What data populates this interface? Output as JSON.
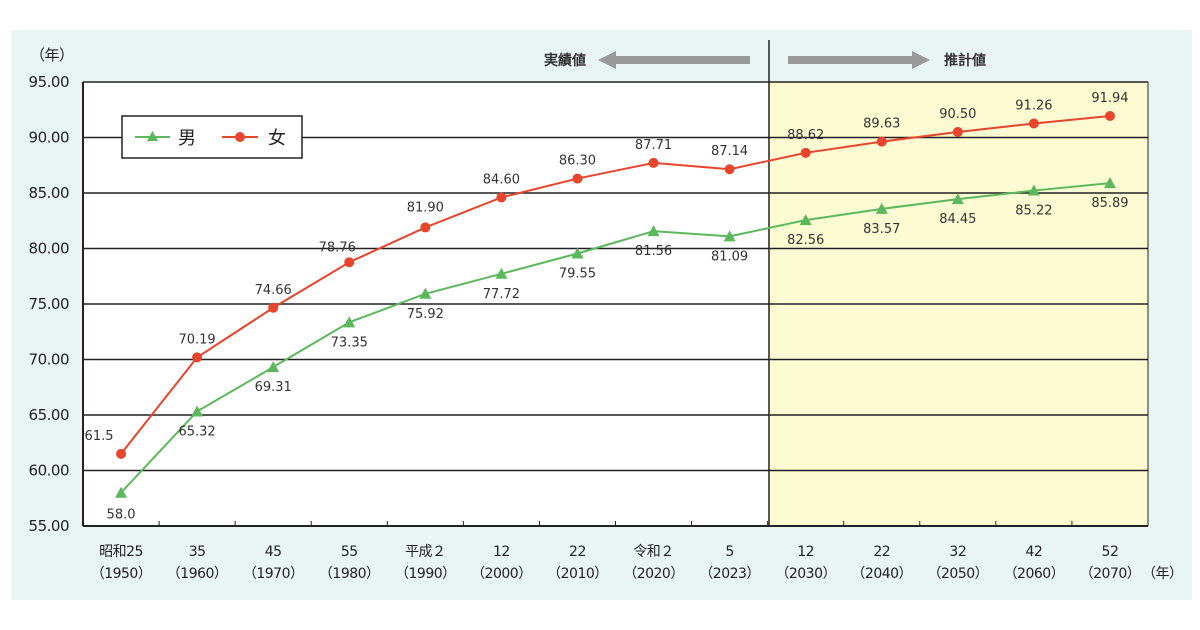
{
  "chart_data": {
    "type": "line",
    "ylabel": "（年）",
    "xunit": "（年）",
    "ylim": [
      55,
      95
    ],
    "yticks": [
      "55.00",
      "60.00",
      "65.00",
      "70.00",
      "75.00",
      "80.00",
      "85.00",
      "90.00",
      "95.00"
    ],
    "grid": true,
    "legend_placement": "top-left",
    "categories": [
      {
        "era": "昭和25",
        "year": "（1950）"
      },
      {
        "era": "35",
        "year": "（1960）"
      },
      {
        "era": "45",
        "year": "（1970）"
      },
      {
        "era": "55",
        "year": "（1980）"
      },
      {
        "era": "平成２",
        "year": "（1990）"
      },
      {
        "era": "12",
        "year": "（2000）"
      },
      {
        "era": "22",
        "year": "（2010）"
      },
      {
        "era": "令和２",
        "year": "（2020）"
      },
      {
        "era": "5",
        "year": "（2023）"
      },
      {
        "era": "12",
        "year": "（2030）"
      },
      {
        "era": "22",
        "year": "（2040）"
      },
      {
        "era": "32",
        "year": "（2050）"
      },
      {
        "era": "42",
        "year": "（2060）"
      },
      {
        "era": "52",
        "year": "（2070）"
      }
    ],
    "series": [
      {
        "name": "男",
        "color": "#5cb85c",
        "marker": "triangle",
        "values": [
          58.0,
          65.32,
          69.31,
          73.35,
          75.92,
          77.72,
          79.55,
          81.56,
          81.09,
          82.56,
          83.57,
          84.45,
          85.22,
          85.89
        ],
        "labels": [
          "58.0",
          "65.32",
          "69.31",
          "73.35",
          "75.92",
          "77.72",
          "79.55",
          "81.56",
          "81.09",
          "82.56",
          "83.57",
          "84.45",
          "85.22",
          "85.89"
        ]
      },
      {
        "name": "女",
        "color": "#e8452c",
        "marker": "circle",
        "values": [
          61.5,
          70.19,
          74.66,
          78.76,
          81.9,
          84.6,
          86.3,
          87.71,
          87.14,
          88.62,
          89.63,
          90.5,
          91.26,
          91.94
        ],
        "labels": [
          "61.5",
          "70.19",
          "74.66",
          "78.76",
          "81.90",
          "84.60",
          "86.30",
          "87.71",
          "87.14",
          "88.62",
          "89.63",
          "90.50",
          "91.26",
          "91.94"
        ]
      }
    ],
    "annotations": {
      "actual": "実績値",
      "projected": "推計値",
      "projected_from_index": 9,
      "projected_fill": "#fdfbd2"
    }
  },
  "colors": {
    "background": "#e9f5f2",
    "arrow": "#999999"
  }
}
